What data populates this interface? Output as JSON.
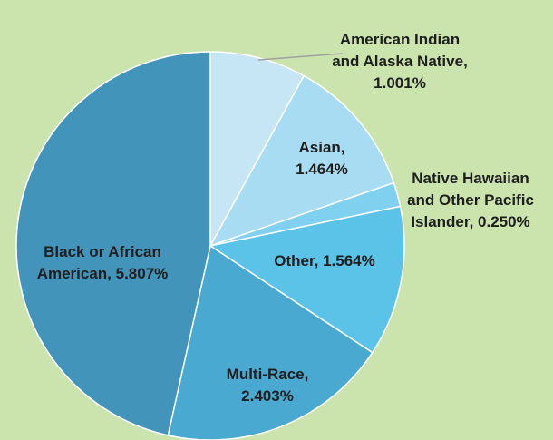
{
  "chart_data": {
    "type": "pie",
    "values": [
      1.001,
      1.464,
      0.25,
      1.564,
      2.403,
      5.807
    ],
    "value_labels": [
      "American Indian and Alaska Native, 1.001%",
      "Asian, 1.464%",
      "Native Hawaiian and Other Pacific Islander, 0.250%",
      "Other, 1.564%",
      "Multi-Race, 2.403%",
      "Black or African American, 5.807%"
    ],
    "colors": [
      "#c6e6f6",
      "#a8dcf3",
      "#80d0f0",
      "#5bc2e8",
      "#49a9d1",
      "#4394bb"
    ]
  }
}
